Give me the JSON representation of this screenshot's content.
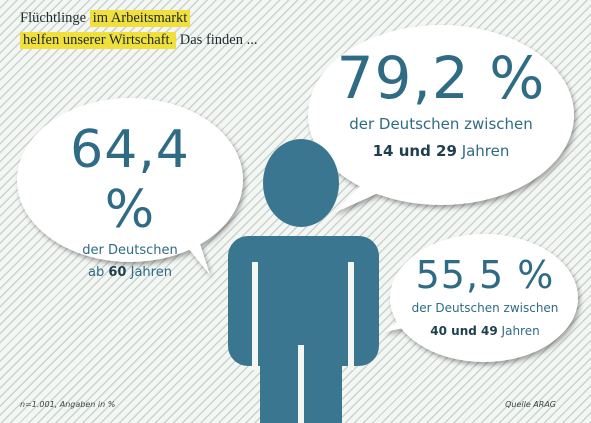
{
  "headline": {
    "part1": "Flüchtlinge",
    "part2_highlight": "im Arbeitsmarkt",
    "part3_highlight": "helfen unserer Wirtschaft.",
    "part4": "Das finden ..."
  },
  "stats": [
    {
      "value": "64,4 %",
      "line1": "der Deutschen",
      "line2_pre": "ab",
      "line2_bold": "60",
      "line2_post": "Jahren"
    },
    {
      "value": "79,2 %",
      "line1": "der Deutschen zwischen",
      "line2_bold_a": "14 und 29",
      "line2_post": "Jahren"
    },
    {
      "value": "55,5 %",
      "line1": "der Deutschen zwischen",
      "line2_bold_a": "40 und 49",
      "line2_post": "Jahren"
    }
  ],
  "footnote": "n=1.001, Angaben in %",
  "source": "Quelle ARAG",
  "colors": {
    "accent_blue": "#2f6b84",
    "person_blue": "#3b7690",
    "highlight_yellow": "#f1df3c",
    "stripe": "#c9d3cd",
    "bubble": "#ffffff"
  },
  "icons": [
    "person-icon",
    "speech-bubble"
  ]
}
